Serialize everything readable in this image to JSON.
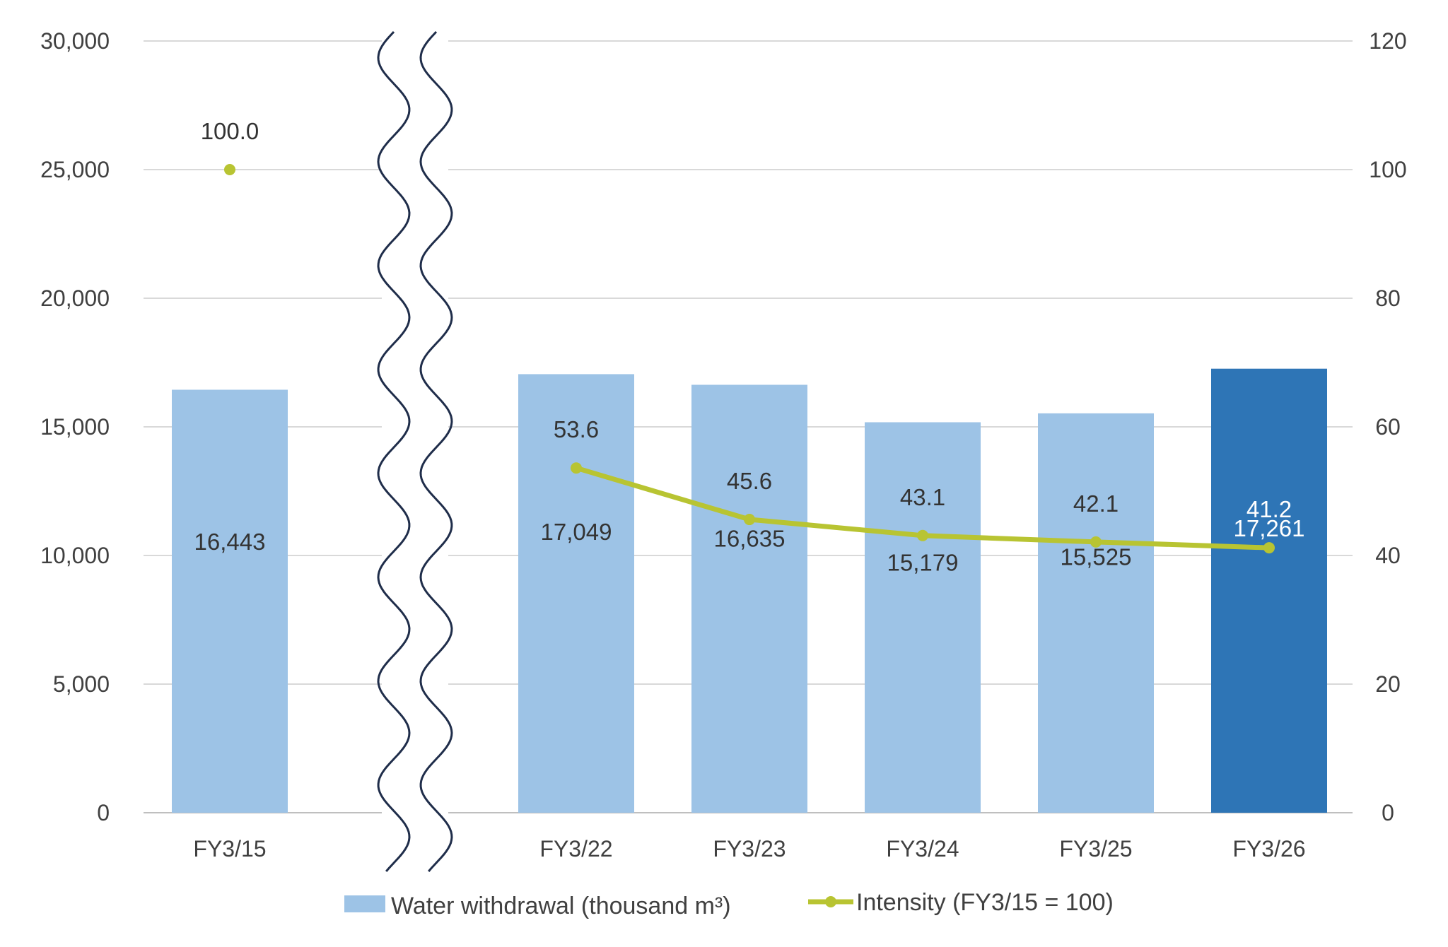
{
  "colors": {
    "bar": "#9dc3e6",
    "bar_highlight": "#2e75b6",
    "line": "#b8c432",
    "break": "#1f2d4a",
    "grid": "#d9d9d9"
  },
  "chart_data": {
    "type": "bar",
    "categories": [
      "FY3/15",
      "FY3/22",
      "FY3/23",
      "FY3/24",
      "FY3/25",
      "FY3/26"
    ],
    "axis_break_after": "FY3/15",
    "highlight_category": "FY3/26",
    "series": [
      {
        "name": "Water withdrawal (thousand m³)",
        "type": "bar",
        "axis": "left",
        "values": [
          16443,
          17049,
          16635,
          15179,
          15525,
          17261
        ],
        "labels": [
          "16,443",
          "17,049",
          "16,635",
          "15,179",
          "15,525",
          "17,261"
        ]
      },
      {
        "name": "Intensity (FY3/15 = 100)",
        "type": "line",
        "axis": "right",
        "values": [
          100.0,
          53.6,
          45.6,
          43.1,
          42.1,
          41.2
        ],
        "labels": [
          "100.0",
          "53.6",
          "45.6",
          "43.1",
          "42.1",
          "41.2"
        ]
      }
    ],
    "y_left": {
      "ylim": [
        0,
        30000
      ],
      "ticks": [
        0,
        5000,
        10000,
        15000,
        20000,
        25000,
        30000
      ],
      "tick_labels": [
        "0",
        "5,000",
        "10,000",
        "15,000",
        "20,000",
        "25,000",
        "30,000"
      ]
    },
    "y_right": {
      "ylim": [
        0,
        120
      ],
      "ticks": [
        0,
        20,
        40,
        60,
        80,
        100,
        120
      ],
      "tick_labels": [
        "0",
        "20",
        "40",
        "60",
        "80",
        "100",
        "120"
      ]
    },
    "grid": true,
    "legend_position": "bottom"
  }
}
